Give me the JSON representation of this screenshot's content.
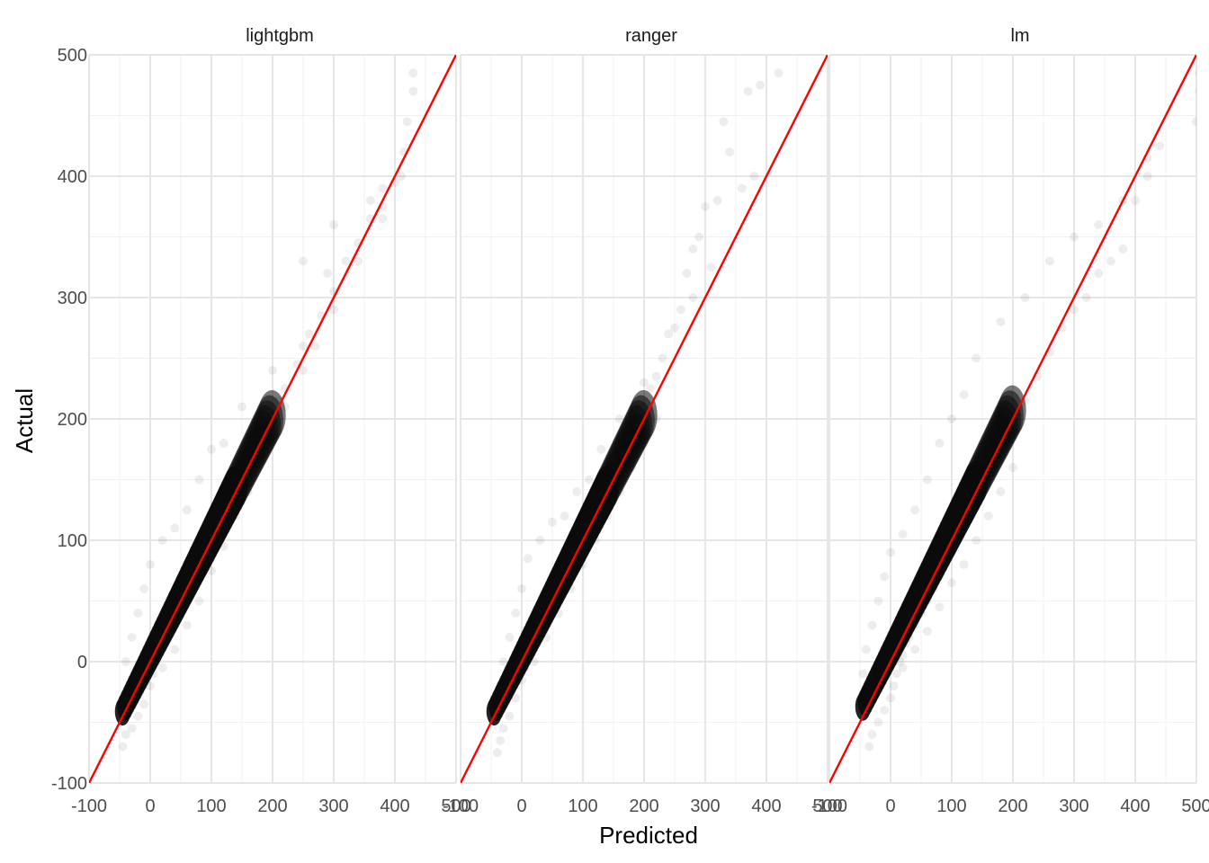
{
  "chart_data": {
    "type": "scatter",
    "xlabel": "Predicted",
    "ylabel": "Actual",
    "xlim": [
      -100,
      500
    ],
    "ylim": [
      -100,
      500
    ],
    "x_ticks": [
      "-100",
      "0",
      "100",
      "200",
      "300",
      "400",
      "500"
    ],
    "y_ticks": [
      "-100",
      "0",
      "100",
      "200",
      "300",
      "400",
      "500"
    ],
    "grid": true,
    "reference_line": {
      "slope": 1,
      "intercept": 0,
      "color": "#ff0000"
    },
    "point_color": "#000000",
    "point_alpha": 0.07,
    "panels": [
      {
        "name": "lightgbm",
        "points": [
          [
            -45,
            -70
          ],
          [
            -40,
            -60
          ],
          [
            -30,
            -55
          ],
          [
            -20,
            -45
          ],
          [
            -10,
            -35
          ],
          [
            0,
            -20
          ],
          [
            5,
            -10
          ],
          [
            10,
            0
          ],
          [
            15,
            10
          ],
          [
            20,
            20
          ],
          [
            25,
            30
          ],
          [
            30,
            35
          ],
          [
            40,
            45
          ],
          [
            50,
            55
          ],
          [
            60,
            65
          ],
          [
            70,
            75
          ],
          [
            80,
            85
          ],
          [
            90,
            95
          ],
          [
            100,
            105
          ],
          [
            110,
            115
          ],
          [
            120,
            125
          ],
          [
            130,
            135
          ],
          [
            140,
            145
          ],
          [
            150,
            155
          ],
          [
            160,
            165
          ],
          [
            170,
            175
          ],
          [
            180,
            185
          ],
          [
            200,
            205
          ],
          [
            210,
            215
          ],
          [
            220,
            225
          ],
          [
            240,
            245
          ],
          [
            250,
            260
          ],
          [
            260,
            270
          ],
          [
            280,
            285
          ],
          [
            300,
            305
          ],
          [
            320,
            330
          ],
          [
            340,
            345
          ],
          [
            360,
            365
          ],
          [
            380,
            390
          ],
          [
            400,
            395
          ],
          [
            420,
            445
          ],
          [
            430,
            470
          ],
          [
            430,
            485
          ],
          [
            415,
            420
          ],
          [
            380,
            375
          ],
          [
            360,
            380
          ],
          [
            300,
            360
          ],
          [
            290,
            320
          ],
          [
            250,
            330
          ],
          [
            200,
            240
          ],
          [
            150,
            210
          ],
          [
            120,
            180
          ],
          [
            100,
            175
          ],
          [
            80,
            150
          ],
          [
            60,
            125
          ],
          [
            40,
            110
          ],
          [
            20,
            100
          ],
          [
            0,
            80
          ],
          [
            -10,
            60
          ],
          [
            -20,
            40
          ],
          [
            -30,
            20
          ],
          [
            -40,
            0
          ],
          [
            20,
            -5
          ],
          [
            40,
            10
          ],
          [
            60,
            30
          ],
          [
            80,
            50
          ],
          [
            100,
            75
          ],
          [
            120,
            95
          ],
          [
            140,
            120
          ],
          [
            160,
            140
          ],
          [
            180,
            165
          ],
          [
            200,
            190
          ],
          [
            220,
            210
          ],
          [
            250,
            240
          ],
          [
            270,
            260
          ],
          [
            300,
            290
          ],
          [
            340,
            330
          ],
          [
            380,
            365
          ],
          [
            410,
            400
          ]
        ]
      },
      {
        "name": "ranger",
        "points": [
          [
            -40,
            -75
          ],
          [
            -35,
            -65
          ],
          [
            -30,
            -55
          ],
          [
            -20,
            -45
          ],
          [
            -10,
            -30
          ],
          [
            0,
            -15
          ],
          [
            5,
            -5
          ],
          [
            10,
            5
          ],
          [
            15,
            15
          ],
          [
            20,
            25
          ],
          [
            25,
            30
          ],
          [
            30,
            40
          ],
          [
            40,
            50
          ],
          [
            50,
            60
          ],
          [
            60,
            70
          ],
          [
            70,
            80
          ],
          [
            80,
            90
          ],
          [
            90,
            100
          ],
          [
            100,
            110
          ],
          [
            110,
            120
          ],
          [
            120,
            130
          ],
          [
            130,
            140
          ],
          [
            140,
            150
          ],
          [
            150,
            165
          ],
          [
            160,
            175
          ],
          [
            170,
            185
          ],
          [
            180,
            195
          ],
          [
            200,
            210
          ],
          [
            210,
            225
          ],
          [
            220,
            235
          ],
          [
            230,
            250
          ],
          [
            250,
            275
          ],
          [
            260,
            290
          ],
          [
            270,
            320
          ],
          [
            280,
            340
          ],
          [
            290,
            350
          ],
          [
            300,
            375
          ],
          [
            320,
            380
          ],
          [
            330,
            445
          ],
          [
            340,
            420
          ],
          [
            370,
            470
          ],
          [
            390,
            475
          ],
          [
            420,
            485
          ],
          [
            380,
            400
          ],
          [
            360,
            390
          ],
          [
            310,
            325
          ],
          [
            280,
            300
          ],
          [
            240,
            270
          ],
          [
            200,
            230
          ],
          [
            160,
            200
          ],
          [
            130,
            175
          ],
          [
            110,
            150
          ],
          [
            90,
            140
          ],
          [
            70,
            120
          ],
          [
            50,
            115
          ],
          [
            30,
            100
          ],
          [
            10,
            85
          ],
          [
            0,
            60
          ],
          [
            -10,
            40
          ],
          [
            -20,
            20
          ],
          [
            -30,
            0
          ],
          [
            -35,
            -20
          ],
          [
            20,
            0
          ],
          [
            40,
            20
          ],
          [
            60,
            40
          ],
          [
            80,
            60
          ],
          [
            100,
            80
          ],
          [
            120,
            100
          ],
          [
            140,
            120
          ],
          [
            160,
            140
          ],
          [
            180,
            160
          ],
          [
            200,
            180
          ],
          [
            220,
            200
          ]
        ]
      },
      {
        "name": "lm",
        "points": [
          [
            -35,
            -70
          ],
          [
            -30,
            -60
          ],
          [
            -20,
            -50
          ],
          [
            -10,
            -40
          ],
          [
            0,
            -30
          ],
          [
            5,
            -20
          ],
          [
            10,
            -10
          ],
          [
            15,
            0
          ],
          [
            20,
            5
          ],
          [
            25,
            15
          ],
          [
            30,
            20
          ],
          [
            40,
            30
          ],
          [
            50,
            40
          ],
          [
            60,
            50
          ],
          [
            70,
            60
          ],
          [
            80,
            70
          ],
          [
            90,
            80
          ],
          [
            100,
            90
          ],
          [
            110,
            100
          ],
          [
            120,
            110
          ],
          [
            130,
            125
          ],
          [
            140,
            135
          ],
          [
            150,
            145
          ],
          [
            160,
            160
          ],
          [
            170,
            170
          ],
          [
            180,
            180
          ],
          [
            190,
            190
          ],
          [
            200,
            200
          ],
          [
            220,
            215
          ],
          [
            240,
            235
          ],
          [
            260,
            255
          ],
          [
            280,
            275
          ],
          [
            300,
            290
          ],
          [
            320,
            300
          ],
          [
            340,
            320
          ],
          [
            360,
            330
          ],
          [
            380,
            340
          ],
          [
            400,
            380
          ],
          [
            420,
            400
          ],
          [
            440,
            425
          ],
          [
            500,
            445
          ],
          [
            505,
            470
          ],
          [
            505,
            485
          ],
          [
            420,
            415
          ],
          [
            380,
            380
          ],
          [
            340,
            360
          ],
          [
            300,
            350
          ],
          [
            260,
            330
          ],
          [
            220,
            300
          ],
          [
            180,
            280
          ],
          [
            140,
            250
          ],
          [
            120,
            220
          ],
          [
            100,
            200
          ],
          [
            80,
            180
          ],
          [
            60,
            150
          ],
          [
            40,
            125
          ],
          [
            20,
            105
          ],
          [
            0,
            90
          ],
          [
            -10,
            70
          ],
          [
            -20,
            50
          ],
          [
            -30,
            30
          ],
          [
            -40,
            10
          ],
          [
            -45,
            -10
          ],
          [
            -40,
            -30
          ],
          [
            20,
            -5
          ],
          [
            40,
            10
          ],
          [
            60,
            25
          ],
          [
            80,
            45
          ],
          [
            100,
            65
          ],
          [
            120,
            80
          ],
          [
            140,
            100
          ],
          [
            160,
            120
          ],
          [
            180,
            140
          ],
          [
            200,
            160
          ]
        ]
      }
    ]
  }
}
